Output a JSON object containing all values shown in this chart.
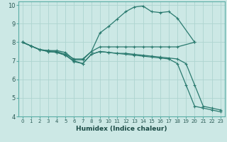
{
  "xlabel": "Humidex (Indice chaleur)",
  "bg_color": "#cce8e5",
  "grid_color": "#aed4d0",
  "line_color": "#2a7a6f",
  "xlim": [
    -0.5,
    23.5
  ],
  "ylim": [
    4,
    10.2
  ],
  "xticks": [
    0,
    1,
    2,
    3,
    4,
    5,
    6,
    7,
    8,
    9,
    10,
    11,
    12,
    13,
    14,
    15,
    16,
    17,
    18,
    19,
    20,
    21,
    22,
    23
  ],
  "yticks": [
    4,
    5,
    6,
    7,
    8,
    9,
    10
  ],
  "curves": [
    {
      "x": [
        0,
        1,
        2,
        3,
        4,
        5,
        6,
        7,
        8,
        9,
        10,
        11,
        12,
        13,
        14,
        15,
        16,
        17,
        18,
        20
      ],
      "y": [
        8.0,
        7.8,
        7.6,
        7.55,
        7.55,
        7.45,
        7.05,
        7.05,
        7.5,
        8.5,
        8.85,
        9.25,
        9.65,
        9.9,
        9.95,
        9.65,
        9.6,
        9.65,
        9.3,
        8.0
      ]
    },
    {
      "x": [
        0,
        1,
        2,
        3,
        4,
        5,
        6,
        7,
        8,
        9,
        10,
        11,
        12,
        13,
        14,
        15,
        16,
        17,
        18,
        20
      ],
      "y": [
        8.0,
        7.8,
        7.6,
        7.55,
        7.5,
        7.35,
        7.1,
        7.1,
        7.5,
        7.75,
        7.75,
        7.75,
        7.75,
        7.75,
        7.75,
        7.75,
        7.75,
        7.75,
        7.75,
        8.0
      ]
    },
    {
      "x": [
        0,
        1,
        2,
        3,
        4,
        5,
        6,
        7,
        8,
        9,
        10,
        11,
        12,
        13,
        14,
        15,
        16,
        17,
        18,
        19,
        20,
        21,
        22,
        23
      ],
      "y": [
        8.0,
        7.8,
        7.6,
        7.5,
        7.45,
        7.3,
        6.95,
        6.85,
        7.35,
        7.5,
        7.45,
        7.4,
        7.4,
        7.35,
        7.3,
        7.25,
        7.2,
        7.15,
        7.1,
        6.85,
        5.7,
        4.55,
        4.45,
        4.35
      ]
    },
    {
      "x": [
        0,
        2,
        3,
        4,
        5,
        6,
        7,
        8,
        9,
        10,
        11,
        12,
        13,
        14,
        15,
        16,
        17,
        18,
        19,
        20,
        21,
        22,
        23
      ],
      "y": [
        8.0,
        7.6,
        7.5,
        7.45,
        7.3,
        7.0,
        6.85,
        7.35,
        7.5,
        7.45,
        7.4,
        7.35,
        7.3,
        7.25,
        7.2,
        7.15,
        7.1,
        6.85,
        5.7,
        4.55,
        4.45,
        4.35,
        4.25
      ]
    }
  ]
}
